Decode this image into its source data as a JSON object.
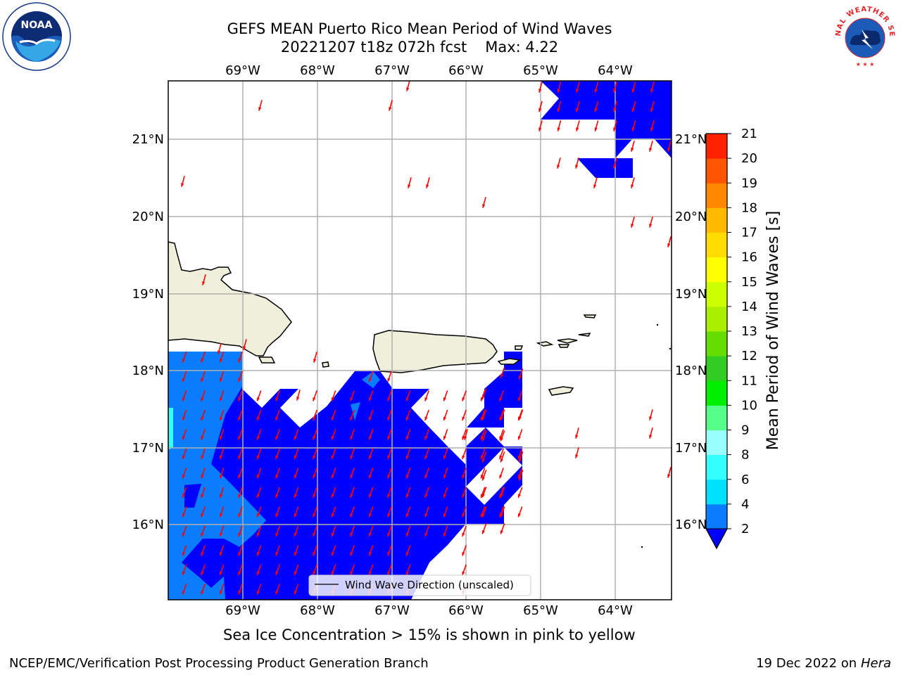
{
  "header": {
    "title_line1": "GEFS MEAN Puerto Rico Mean Period of Wind Waves",
    "title_line2": "20221207 t18z 072h fcst",
    "max_label": "Max: 4.22"
  },
  "logos": {
    "left": {
      "text": "NOAA",
      "ring_text": "NATIONAL OCEANIC AND ATMOSPHERIC ADMINISTRATION · U.S. DEPARTMENT OF COMMERCE"
    },
    "right": {
      "ring_text": "NATIONAL WEATHER SERVICE"
    }
  },
  "map": {
    "lon_labels": [
      "69°W",
      "68°W",
      "67°W",
      "66°W",
      "65°W",
      "64°W"
    ],
    "lat_labels": [
      "21°N",
      "20°N",
      "19°N",
      "18°N",
      "17°N",
      "16°N"
    ],
    "legend_label": "Wind Wave Direction (unscaled)",
    "land_color": "#efefdc",
    "arrow_color": "#ff0000"
  },
  "colorbar": {
    "label": "Mean Period of Wind Waves [s]",
    "ticks": [
      "2",
      "4",
      "6",
      "8",
      "9",
      "10",
      "11",
      "12",
      "13",
      "14",
      "15",
      "16",
      "17",
      "18",
      "19",
      "20",
      "21"
    ],
    "colors": [
      "#0000ff",
      "#0a7dff",
      "#00e0ff",
      "#33ffff",
      "#99ffff",
      "#55ff8a",
      "#00ee00",
      "#33cc22",
      "#66dd00",
      "#aaee00",
      "#ccff00",
      "#ffff00",
      "#ffdd00",
      "#ffbb00",
      "#ff8800",
      "#ff5500",
      "#ff2200",
      "#ff0000"
    ]
  },
  "notes": {
    "sea_ice": "Sea Ice Concentration > 15% is shown in pink to yellow"
  },
  "footer": {
    "left": "NCEP/EMC/Verification Post Processing Product Generation Branch",
    "right_date": "19 Dec 2022 on",
    "right_machine": "Hera"
  }
}
